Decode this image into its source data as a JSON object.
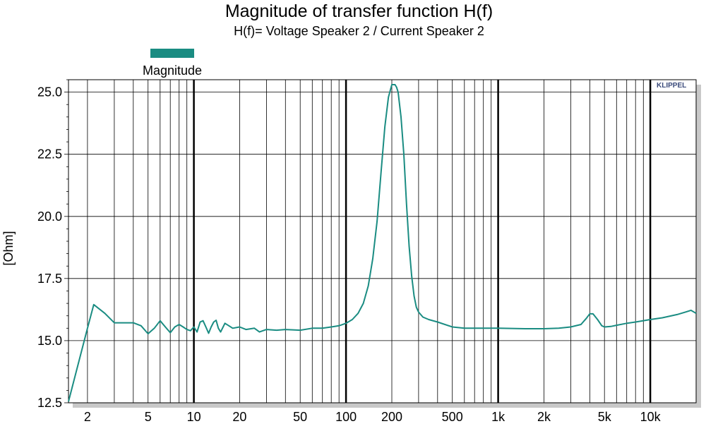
{
  "chart_data": {
    "type": "line",
    "title": "Magnitude of transfer function H(f)",
    "subtitle": "H(f)= Voltage Speaker 2 / Current Speaker 2",
    "ylabel": "[Ohm]",
    "xlabel": "",
    "x_scale": "log",
    "xlim": [
      1.5,
      20000
    ],
    "ylim": [
      12.5,
      25.5
    ],
    "grid": true,
    "legend_position": "top-left",
    "brand_label": "KLIPPEL",
    "x_tick_values": [
      2,
      5,
      10,
      20,
      50,
      100,
      200,
      500,
      1000,
      2000,
      5000,
      10000
    ],
    "x_tick_labels": [
      "2",
      "5",
      "10",
      "20",
      "50",
      "100",
      "200",
      "500",
      "1k",
      "2k",
      "5k",
      "10k"
    ],
    "y_tick_values": [
      12.5,
      15.0,
      17.5,
      20.0,
      22.5,
      25.0
    ],
    "y_tick_labels": [
      "12.5",
      "15.0",
      "17.5",
      "20.0",
      "22.5",
      "25.0"
    ],
    "colors": {
      "series": "#1a8c82",
      "grid": "#000000",
      "shadow": "#c8c8c8"
    },
    "series": [
      {
        "name": "Magnitude",
        "x": [
          1.5,
          2.0,
          2.2,
          2.6,
          3.0,
          3.5,
          4.0,
          4.5,
          5.0,
          5.5,
          6.0,
          6.5,
          7.0,
          7.5,
          8.0,
          8.5,
          9.0,
          9.5,
          10.0,
          10.5,
          11.0,
          11.5,
          12.0,
          12.5,
          13.0,
          13.5,
          14.0,
          14.5,
          15.0,
          16.0,
          17.0,
          18.0,
          20.0,
          22.0,
          25.0,
          27.0,
          30.0,
          35.0,
          40.0,
          50.0,
          60.0,
          70.0,
          80.0,
          90.0,
          100.0,
          110.0,
          120.0,
          130.0,
          140.0,
          150.0,
          160.0,
          170.0,
          180.0,
          190.0,
          200.0,
          210.0,
          215.0,
          220.0,
          230.0,
          240.0,
          250.0,
          260.0,
          270.0,
          280.0,
          290.0,
          300.0,
          320.0,
          350.0,
          400.0,
          500.0,
          600.0,
          700.0,
          800.0,
          1000.0,
          1500.0,
          2000.0,
          2500.0,
          3000.0,
          3500.0,
          3800.0,
          4000.0,
          4200.0,
          4500.0,
          4800.0,
          5000.0,
          5500.0,
          6000.0,
          7000.0,
          8000.0,
          10000.0,
          12000.0,
          15000.0,
          17000.0,
          18500.0,
          20000.0
        ],
        "y": [
          12.55,
          15.5,
          16.45,
          16.1,
          15.72,
          15.72,
          15.72,
          15.6,
          15.28,
          15.5,
          15.8,
          15.55,
          15.32,
          15.55,
          15.65,
          15.55,
          15.45,
          15.4,
          15.55,
          15.35,
          15.75,
          15.8,
          15.55,
          15.3,
          15.55,
          15.75,
          15.82,
          15.5,
          15.35,
          15.7,
          15.6,
          15.5,
          15.55,
          15.45,
          15.5,
          15.35,
          15.45,
          15.42,
          15.45,
          15.42,
          15.5,
          15.5,
          15.55,
          15.6,
          15.7,
          15.85,
          16.1,
          16.5,
          17.2,
          18.3,
          19.8,
          21.8,
          23.6,
          24.8,
          25.3,
          25.3,
          25.2,
          25.0,
          24.0,
          22.5,
          20.5,
          18.8,
          17.6,
          16.8,
          16.35,
          16.15,
          15.95,
          15.85,
          15.75,
          15.55,
          15.5,
          15.5,
          15.5,
          15.5,
          15.48,
          15.48,
          15.5,
          15.55,
          15.65,
          15.9,
          16.08,
          16.08,
          15.85,
          15.6,
          15.55,
          15.57,
          15.62,
          15.7,
          15.75,
          15.85,
          15.92,
          16.05,
          16.15,
          16.22,
          16.1
        ]
      }
    ]
  }
}
